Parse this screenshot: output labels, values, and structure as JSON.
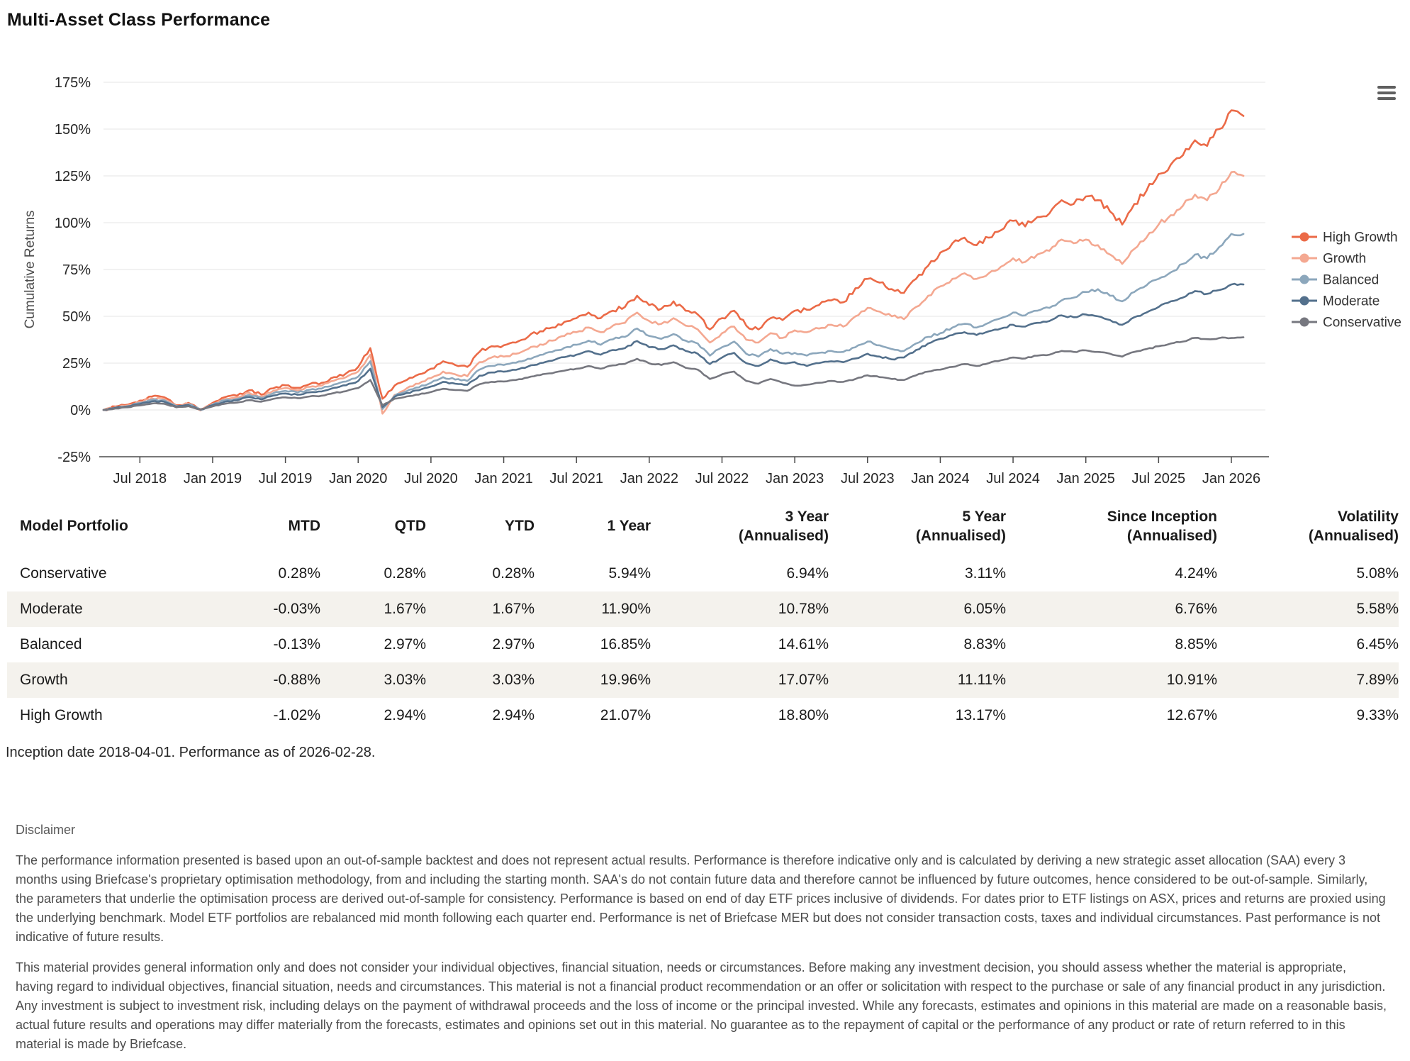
{
  "page": {
    "title": "Multi-Asset Class Performance"
  },
  "chart": {
    "menu_icon": "hamburger-menu-icon",
    "colors": {
      "grid": "#e6e6e6",
      "axis": "#4a4a4a",
      "tick_label": "#262626",
      "axis_title": "#4d4d4d",
      "legend_text": "#333333"
    }
  },
  "chart_data": {
    "type": "line",
    "title": "",
    "xlabel": "",
    "ylabel": "Cumulative Returns",
    "ylim": [
      -25,
      175
    ],
    "grid": "horizontal",
    "legend_position": "right",
    "y_tick_values": [
      175,
      150,
      125,
      100,
      75,
      50,
      25,
      0,
      -25
    ],
    "y_tick_labels": [
      "175%",
      "150%",
      "125%",
      "100%",
      "75%",
      "50%",
      "25%",
      "0%",
      "-25%"
    ],
    "x_tick_labels": [
      "Jul 2018",
      "Jan 2019",
      "Jul 2019",
      "Jan 2020",
      "Jul 2020",
      "Jan 2021",
      "Jul 2021",
      "Jan 2022",
      "Jul 2022",
      "Jan 2023",
      "Jul 2023",
      "Jan 2024",
      "Jul 2024",
      "Jan 2025",
      "Jul 2025",
      "Jan 2026"
    ],
    "x_tick_month_indices": [
      3,
      9,
      15,
      21,
      27,
      33,
      39,
      45,
      51,
      57,
      63,
      69,
      75,
      81,
      87,
      93
    ],
    "months": [
      "2018-04",
      "2018-05",
      "2018-06",
      "2018-07",
      "2018-08",
      "2018-09",
      "2018-10",
      "2018-11",
      "2018-12",
      "2019-01",
      "2019-02",
      "2019-03",
      "2019-04",
      "2019-05",
      "2019-06",
      "2019-07",
      "2019-08",
      "2019-09",
      "2019-10",
      "2019-11",
      "2019-12",
      "2020-01",
      "2020-02",
      "2020-03",
      "2020-04",
      "2020-05",
      "2020-06",
      "2020-07",
      "2020-08",
      "2020-09",
      "2020-10",
      "2020-11",
      "2020-12",
      "2021-01",
      "2021-02",
      "2021-03",
      "2021-04",
      "2021-05",
      "2021-06",
      "2021-07",
      "2021-08",
      "2021-09",
      "2021-10",
      "2021-11",
      "2021-12",
      "2022-01",
      "2022-02",
      "2022-03",
      "2022-04",
      "2022-05",
      "2022-06",
      "2022-07",
      "2022-08",
      "2022-09",
      "2022-10",
      "2022-11",
      "2022-12",
      "2023-01",
      "2023-02",
      "2023-03",
      "2023-04",
      "2023-05",
      "2023-06",
      "2023-07",
      "2023-08",
      "2023-09",
      "2023-10",
      "2023-11",
      "2023-12",
      "2024-01",
      "2024-02",
      "2024-03",
      "2024-04",
      "2024-05",
      "2024-06",
      "2024-07",
      "2024-08",
      "2024-09",
      "2024-10",
      "2024-11",
      "2024-12",
      "2025-01",
      "2025-02",
      "2025-03",
      "2025-04",
      "2025-05",
      "2025-06",
      "2025-07",
      "2025-08",
      "2025-09",
      "2025-10",
      "2025-11",
      "2025-12",
      "2026-01",
      "2026-02"
    ],
    "unit": "% cumulative return",
    "series": [
      {
        "name": "High Growth",
        "color": "#eb6a47",
        "noise": 1.6,
        "values": [
          0,
          1.8,
          2.8,
          5,
          7.2,
          6.8,
          2.5,
          3.8,
          0.3,
          3.8,
          6.8,
          7.6,
          10.5,
          8.2,
          11.5,
          13.2,
          11.8,
          13.8,
          14.5,
          17.5,
          19.5,
          23,
          33,
          6,
          13,
          16,
          19,
          22,
          26,
          24,
          23,
          31,
          34,
          34.5,
          36,
          39,
          42,
          44,
          47,
          49,
          52,
          49,
          53,
          55,
          61,
          56,
          54,
          58,
          53,
          51,
          43,
          49,
          53,
          45,
          43,
          49,
          48,
          53,
          53.5,
          56,
          58.5,
          57.5,
          65,
          70,
          68,
          64.5,
          62.5,
          70,
          77,
          84,
          89,
          92,
          88,
          92,
          96,
          101,
          98,
          103,
          105,
          112,
          110,
          114,
          112,
          106,
          99,
          110,
          117,
          126,
          131,
          136,
          144,
          141,
          150,
          160,
          157
        ]
      },
      {
        "name": "Growth",
        "color": "#f4a891",
        "noise": 1.35,
        "values": [
          0,
          1.5,
          2.4,
          4.3,
          6.2,
          5.9,
          2.2,
          3.3,
          -0.3,
          3.3,
          5.9,
          6.7,
          9.2,
          7.2,
          10.2,
          11.7,
          10.5,
          12.3,
          13,
          15.6,
          17.5,
          20.5,
          29.5,
          -2,
          8,
          11.5,
          14,
          17,
          20.5,
          19,
          18,
          25.5,
          28,
          28.5,
          30,
          32.5,
          35,
          37,
          39.5,
          41.5,
          44,
          41.5,
          45,
          46.5,
          52,
          47.5,
          46,
          49,
          45,
          43,
          36,
          41,
          44.5,
          37.5,
          36,
          41,
          38.5,
          42.5,
          41.5,
          43.5,
          45.5,
          44.5,
          50,
          54.5,
          52.5,
          50,
          48.5,
          55,
          61,
          66,
          70,
          73,
          70,
          73,
          76.5,
          81,
          79,
          83,
          85,
          91,
          89,
          91,
          88,
          83,
          78,
          86,
          92,
          99,
          104,
          109,
          115,
          112,
          118,
          127,
          125
        ]
      },
      {
        "name": "Balanced",
        "color": "#8ca7bc",
        "noise": 1.05,
        "values": [
          0,
          1.3,
          2.1,
          3.8,
          5.4,
          5.2,
          2,
          3,
          0,
          2.9,
          5.1,
          5.9,
          8,
          6.4,
          8.9,
          10.2,
          9.3,
          10.8,
          11.4,
          13.6,
          15.2,
          17.8,
          26,
          0.5,
          7.5,
          10,
          12,
          14.5,
          17.5,
          16.2,
          15.5,
          21.5,
          23.5,
          24,
          25.2,
          27.3,
          29.4,
          31,
          33.2,
          34.8,
          37,
          34.8,
          37.7,
          39,
          43.5,
          39.5,
          38,
          40.5,
          37,
          35.5,
          29,
          33.5,
          36.5,
          30,
          28.5,
          32.5,
          30,
          30.5,
          29,
          30.5,
          31.5,
          31,
          33.5,
          36.5,
          34.5,
          32.5,
          31.5,
          35.5,
          39,
          41,
          44,
          46,
          44,
          46.5,
          49,
          52,
          50.5,
          53,
          54.5,
          58.5,
          60,
          63,
          64.5,
          61,
          58,
          63,
          66.5,
          70,
          73.5,
          78,
          83,
          81,
          87,
          94,
          94
        ]
      },
      {
        "name": "Moderate",
        "color": "#53708c",
        "noise": 0.8,
        "values": [
          0,
          1.1,
          1.8,
          3.2,
          4.6,
          4.4,
          1.8,
          2.6,
          0.2,
          2.5,
          4.4,
          5.1,
          6.9,
          5.6,
          7.7,
          8.8,
          8.1,
          9.4,
          9.9,
          11.8,
          13.2,
          15.4,
          22,
          1.5,
          7,
          9,
          10.5,
          12.5,
          15,
          14,
          13.4,
          18.3,
          20,
          20.4,
          21.4,
          23.2,
          25,
          26.3,
          28.2,
          29.5,
          31.4,
          29.5,
          32,
          33,
          36.8,
          33.5,
          32.5,
          34.5,
          31.5,
          30,
          24.5,
          28,
          30.5,
          25,
          23.5,
          27,
          25,
          25.5,
          23.5,
          25,
          26,
          25.5,
          27.5,
          30,
          28.5,
          27,
          28,
          32,
          35.5,
          38,
          40,
          41.5,
          40,
          42,
          43.5,
          45.5,
          44.5,
          46.5,
          47.5,
          50.5,
          49.5,
          51,
          50,
          48,
          45.5,
          49.5,
          52,
          55,
          58,
          60,
          63.5,
          62,
          64,
          67,
          67
        ]
      },
      {
        "name": "Conservative",
        "color": "#76777f",
        "noise": 0.55,
        "values": [
          0,
          0.8,
          1.4,
          2.4,
          3.4,
          3.3,
          1.4,
          2,
          0.3,
          1.9,
          3.3,
          3.9,
          5.2,
          4.4,
          5.9,
          6.7,
          6.3,
          7.2,
          7.6,
          9,
          10,
          11.7,
          16,
          2.5,
          6,
          7.2,
          8.2,
          9.6,
          11.3,
          10.6,
          10.2,
          13.7,
          15,
          15.2,
          16,
          17.3,
          18.6,
          19.6,
          21,
          22,
          23.4,
          22,
          23.8,
          24.6,
          27.3,
          24.9,
          24,
          25.5,
          22.5,
          21.5,
          16.5,
          19,
          20.5,
          15.5,
          14,
          16.5,
          14.5,
          13,
          13.5,
          14.5,
          15.5,
          15,
          16.5,
          18.5,
          17.5,
          16.5,
          16,
          18.5,
          20.5,
          21.5,
          23,
          24.5,
          23.5,
          25,
          26.5,
          28,
          27.5,
          29,
          29.5,
          31.5,
          31,
          31.8,
          31,
          30,
          28.5,
          31,
          32.5,
          34,
          35.5,
          36.5,
          38.5,
          37.8,
          38.4,
          38.4,
          38.8
        ]
      }
    ]
  },
  "table": {
    "headers": [
      "Model Portfolio",
      "MTD",
      "QTD",
      "YTD",
      "1 Year",
      "3 Year\n(Annualised)",
      "5 Year\n(Annualised)",
      "Since Inception\n(Annualised)",
      "Volatility\n(Annualised)"
    ],
    "rows": [
      {
        "name": "Conservative",
        "values": [
          "0.28%",
          "0.28%",
          "0.28%",
          "5.94%",
          "6.94%",
          "3.11%",
          "4.24%",
          "5.08%"
        ]
      },
      {
        "name": "Moderate",
        "values": [
          "-0.03%",
          "1.67%",
          "1.67%",
          "11.90%",
          "10.78%",
          "6.05%",
          "6.76%",
          "5.58%"
        ]
      },
      {
        "name": "Balanced",
        "values": [
          "-0.13%",
          "2.97%",
          "2.97%",
          "16.85%",
          "14.61%",
          "8.83%",
          "8.85%",
          "6.45%"
        ]
      },
      {
        "name": "Growth",
        "values": [
          "-0.88%",
          "3.03%",
          "3.03%",
          "19.96%",
          "17.07%",
          "11.11%",
          "10.91%",
          "7.89%"
        ]
      },
      {
        "name": "High Growth",
        "values": [
          "-1.02%",
          "2.94%",
          "2.94%",
          "21.07%",
          "18.80%",
          "13.17%",
          "12.67%",
          "9.33%"
        ]
      }
    ]
  },
  "footnote": "Inception date 2018-04-01. Performance as of 2026-02-28.",
  "disclaimer": {
    "heading": "Disclaimer",
    "p1": "The performance information presented is based upon an out-of-sample backtest and does not represent actual results. Performance is therefore indicative only and is calculated by deriving a new strategic asset allocation (SAA) every 3 months using Briefcase's proprietary optimisation methodology, from and including the starting month. SAA's do not contain future data and therefore cannot be influenced by future outcomes, hence considered to be out-of-sample. Similarly, the parameters that underlie the optimisation process are derived out-of-sample for consistency. Performance is based on end of day ETF prices inclusive of dividends. For dates prior to ETF listings on ASX, prices and returns are proxied using the underlying benchmark. Model ETF portfolios are rebalanced mid month following each quarter end. Performance is net of Briefcase MER but does not consider transaction costs, taxes and individual circumstances. Past performance is not indicative of future results.",
    "p2": "This material provides general information only and does not consider your individual objectives, financial situation, needs or circumstances. Before making any investment decision, you should assess whether the material is appropriate, having regard to individual objectives, financial situation, needs and circumstances. This material is not a financial product recommendation or an offer or solicitation with respect to the purchase or sale of any financial product in any jurisdiction. Any investment is subject to investment risk, including delays on the payment of withdrawal proceeds and the loss of income or the principal invested. While any forecasts, estimates and opinions in this material are made on a reasonable basis, actual future results and operations may differ materially from the forecasts, estimates and opinions set out in this material. No guarantee as to the repayment of capital or the performance of any product or rate of return referred to in this material is made by Briefcase."
  }
}
